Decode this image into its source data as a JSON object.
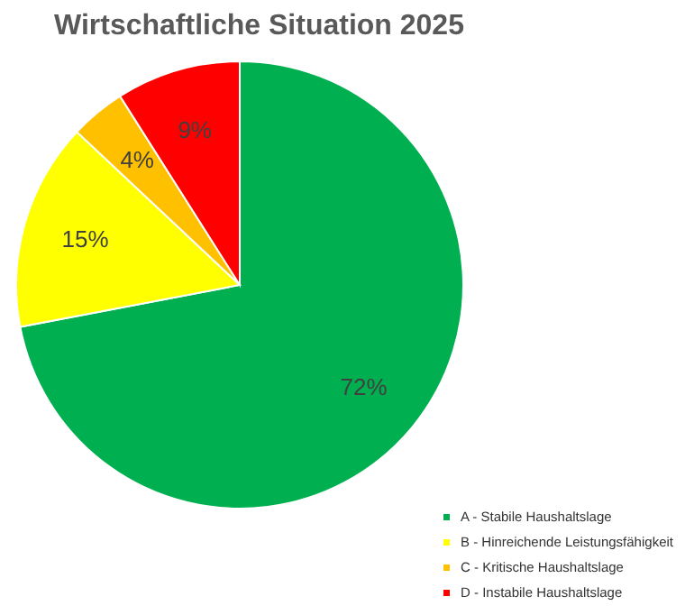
{
  "chart_data": {
    "type": "pie",
    "title": "Wirtschaftliche Situation 2025",
    "categories": [
      "A - Stabile Haushaltslage",
      "B - Hinreichende Leistungsfähigkeit",
      "C - Kritische Haushaltslage",
      "D - Instabile Haushaltslage"
    ],
    "values": [
      72,
      15,
      4,
      9
    ],
    "colors": [
      "#00b050",
      "#ffff00",
      "#ffc000",
      "#ff0000"
    ],
    "value_labels": [
      "72%",
      "15%",
      "4%",
      "9%"
    ],
    "legend": "bottom right"
  }
}
